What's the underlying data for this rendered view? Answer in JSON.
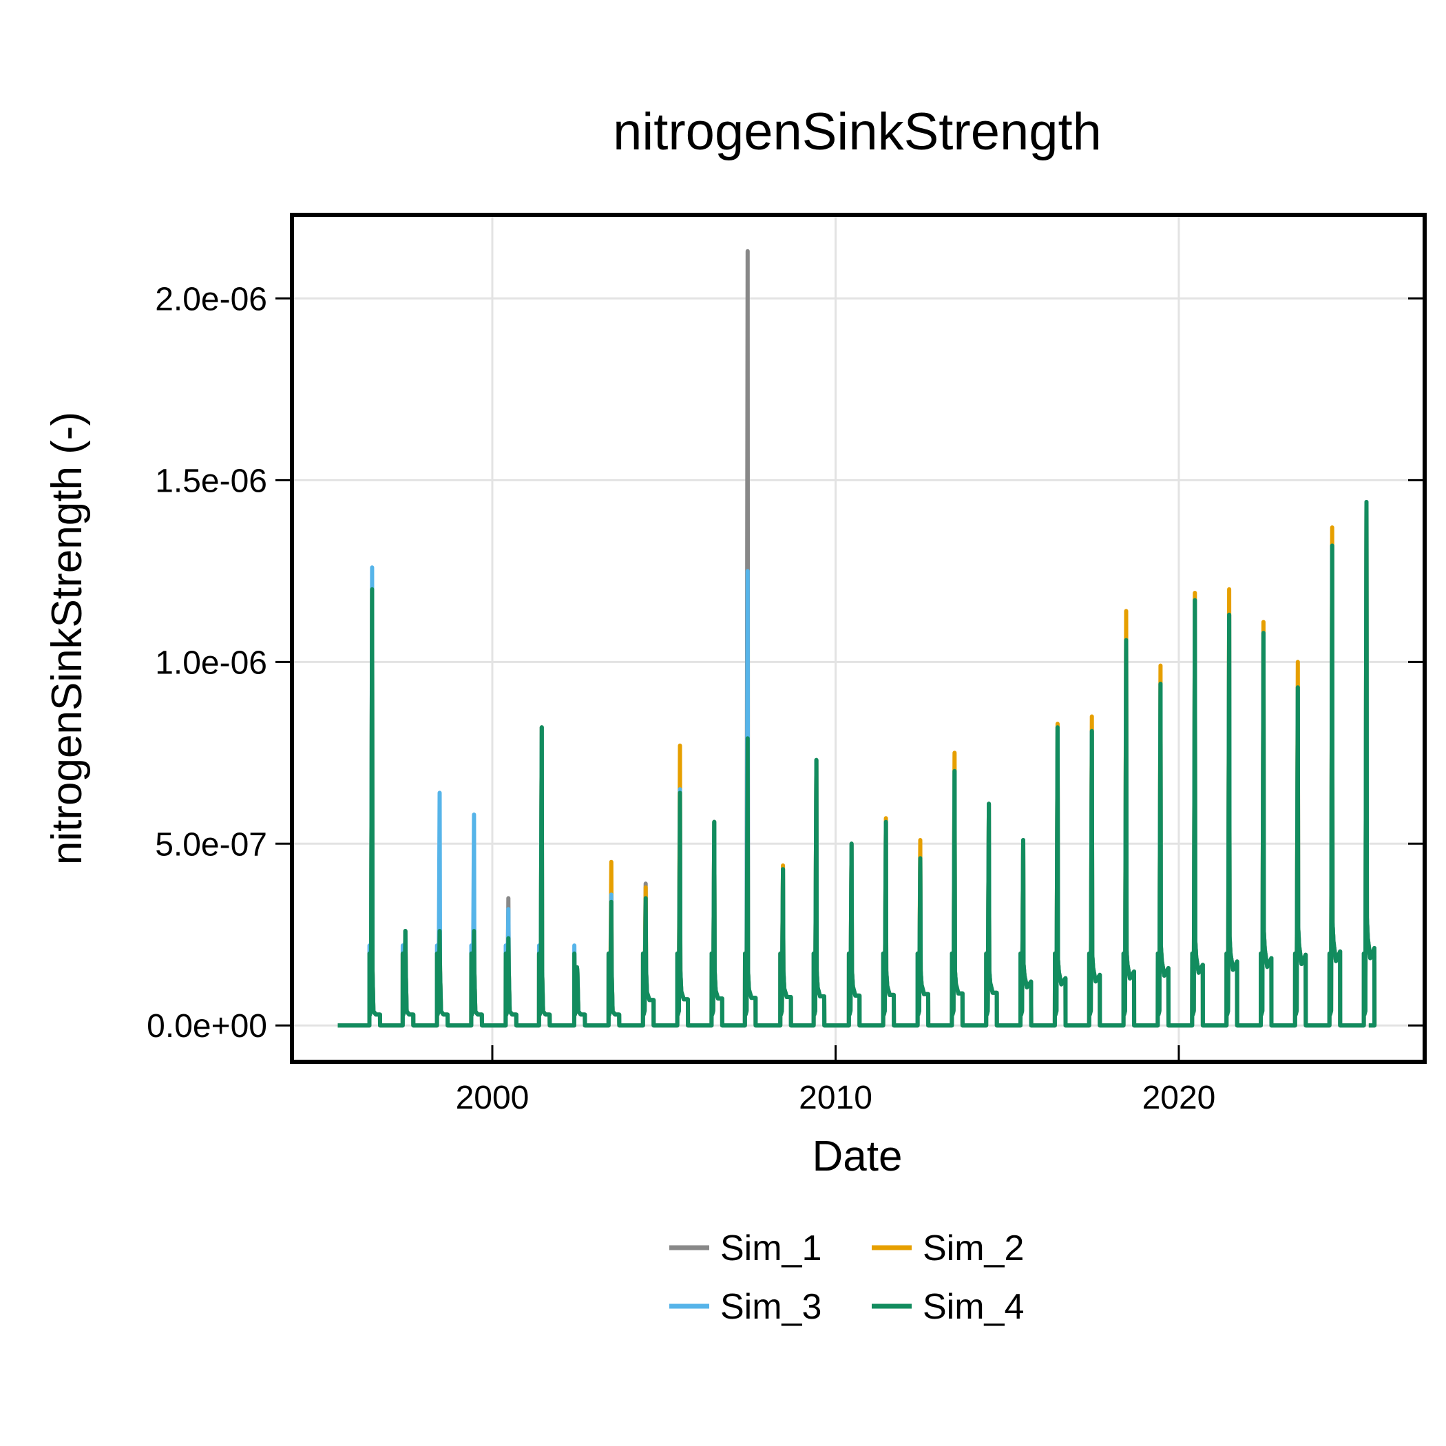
{
  "chart_data": {
    "type": "line",
    "title": "nitrogenSinkStrength",
    "xlabel": "Date",
    "ylabel": "nitrogenSinkStrength (-)",
    "x_axis_type": "date",
    "xlim": [
      "1994-03-01",
      "2027-03-01"
    ],
    "ylim": [
      -1e-07,
      2.23e-06
    ],
    "x_ticks": [
      {
        "value": "2000-01-01",
        "label": "2000"
      },
      {
        "value": "2010-01-01",
        "label": "2010"
      },
      {
        "value": "2020-01-01",
        "label": "2020"
      }
    ],
    "y_ticks": [
      {
        "value": 0,
        "label": "0.0e+00"
      },
      {
        "value": 5e-07,
        "label": "5.0e-07"
      },
      {
        "value": 1e-06,
        "label": "1.0e-06"
      },
      {
        "value": 1.5e-06,
        "label": "1.5e-06"
      },
      {
        "value": 2e-06,
        "label": "2.0e-06"
      }
    ],
    "grid": true,
    "legend_position": "bottom",
    "date_range": [
      "1995-07-01",
      "2025-07-15"
    ],
    "series": [
      {
        "name": "Sim_1",
        "color": "#888888",
        "peaks": [
          {
            "date": "1996-07-01",
            "value": 1.2e-06
          },
          {
            "date": "1997-06-20",
            "value": 2.6e-07
          },
          {
            "date": "1998-06-20",
            "value": 2.6e-07
          },
          {
            "date": "1999-06-20",
            "value": 2.6e-07
          },
          {
            "date": "2000-06-20",
            "value": 3.5e-07
          },
          {
            "date": "2001-06-10",
            "value": 8.2e-07
          },
          {
            "date": "2002-06-20",
            "value": 1.6e-07
          },
          {
            "date": "2003-06-20",
            "value": 3.5e-07
          },
          {
            "date": "2004-06-20",
            "value": 3.9e-07
          },
          {
            "date": "2005-06-20",
            "value": 6.5e-07
          },
          {
            "date": "2006-06-20",
            "value": 5.6e-07
          },
          {
            "date": "2007-06-10",
            "value": 2.13e-06
          },
          {
            "date": "2008-06-20",
            "value": 4.3e-07
          },
          {
            "date": "2009-06-10",
            "value": 7.3e-07
          },
          {
            "date": "2010-06-20",
            "value": 5e-07
          },
          {
            "date": "2011-06-20",
            "value": 5.6e-07
          },
          {
            "date": "2012-06-20",
            "value": 4.6e-07
          },
          {
            "date": "2013-06-20",
            "value": 7e-07
          },
          {
            "date": "2014-06-20",
            "value": 6.1e-07
          },
          {
            "date": "2015-06-20",
            "value": 5.1e-07
          },
          {
            "date": "2016-06-20",
            "value": 8.2e-07
          },
          {
            "date": "2017-06-20",
            "value": 8.1e-07
          },
          {
            "date": "2018-06-20",
            "value": 1.06e-06
          },
          {
            "date": "2019-06-20",
            "value": 9.4e-07
          },
          {
            "date": "2020-06-20",
            "value": 1.17e-06
          },
          {
            "date": "2021-06-20",
            "value": 1.13e-06
          },
          {
            "date": "2022-06-20",
            "value": 1.08e-06
          },
          {
            "date": "2023-06-20",
            "value": 9.3e-07
          },
          {
            "date": "2024-06-20",
            "value": 1.32e-06
          },
          {
            "date": "2025-06-20",
            "value": 1.44e-06
          }
        ]
      },
      {
        "name": "Sim_2",
        "color": "#E69F00",
        "peaks": [
          {
            "date": "1996-07-01",
            "value": 1.2e-06
          },
          {
            "date": "1997-06-20",
            "value": 2.6e-07
          },
          {
            "date": "1998-06-20",
            "value": 2.6e-07
          },
          {
            "date": "1999-06-20",
            "value": 2.6e-07
          },
          {
            "date": "2000-06-20",
            "value": 2.4e-07
          },
          {
            "date": "2001-06-10",
            "value": 8.2e-07
          },
          {
            "date": "2002-06-20",
            "value": 1.6e-07
          },
          {
            "date": "2003-06-20",
            "value": 4.5e-07
          },
          {
            "date": "2004-06-20",
            "value": 3.8e-07
          },
          {
            "date": "2005-06-20",
            "value": 7.7e-07
          },
          {
            "date": "2006-06-20",
            "value": 5.6e-07
          },
          {
            "date": "2007-06-10",
            "value": 7.9e-07
          },
          {
            "date": "2008-06-20",
            "value": 4.4e-07
          },
          {
            "date": "2009-06-10",
            "value": 7.3e-07
          },
          {
            "date": "2010-06-20",
            "value": 5e-07
          },
          {
            "date": "2011-06-20",
            "value": 5.7e-07
          },
          {
            "date": "2012-06-20",
            "value": 5.1e-07
          },
          {
            "date": "2013-06-20",
            "value": 7.5e-07
          },
          {
            "date": "2014-06-20",
            "value": 6.1e-07
          },
          {
            "date": "2015-06-20",
            "value": 5.1e-07
          },
          {
            "date": "2016-06-20",
            "value": 8.3e-07
          },
          {
            "date": "2017-06-20",
            "value": 8.5e-07
          },
          {
            "date": "2018-06-20",
            "value": 1.14e-06
          },
          {
            "date": "2019-06-20",
            "value": 9.9e-07
          },
          {
            "date": "2020-06-20",
            "value": 1.19e-06
          },
          {
            "date": "2021-06-20",
            "value": 1.2e-06
          },
          {
            "date": "2022-06-20",
            "value": 1.11e-06
          },
          {
            "date": "2023-06-20",
            "value": 1e-06
          },
          {
            "date": "2024-06-20",
            "value": 1.37e-06
          },
          {
            "date": "2025-06-20",
            "value": 1.44e-06
          }
        ]
      },
      {
        "name": "Sim_3",
        "color": "#56B4E9",
        "peaks": [
          {
            "date": "1996-07-01",
            "value": 1.26e-06
          },
          {
            "date": "1997-06-20",
            "value": 2.6e-07
          },
          {
            "date": "1998-06-20",
            "value": 6.4e-07
          },
          {
            "date": "1999-06-20",
            "value": 5.8e-07
          },
          {
            "date": "2000-06-20",
            "value": 3.2e-07
          },
          {
            "date": "2001-06-10",
            "value": 8.2e-07
          },
          {
            "date": "2002-06-20",
            "value": 1.6e-07
          },
          {
            "date": "2003-06-20",
            "value": 3.6e-07
          },
          {
            "date": "2004-06-20",
            "value": 3.1e-07
          },
          {
            "date": "2005-06-20",
            "value": 6.5e-07
          },
          {
            "date": "2006-06-20",
            "value": 5.6e-07
          },
          {
            "date": "2007-06-10",
            "value": 1.25e-06
          },
          {
            "date": "2008-06-20",
            "value": 4.3e-07
          },
          {
            "date": "2009-06-10",
            "value": 7.3e-07
          },
          {
            "date": "2010-06-20",
            "value": 5e-07
          },
          {
            "date": "2011-06-20",
            "value": 5.6e-07
          },
          {
            "date": "2012-06-20",
            "value": 4.6e-07
          },
          {
            "date": "2013-06-20",
            "value": 7e-07
          },
          {
            "date": "2014-06-20",
            "value": 6.1e-07
          },
          {
            "date": "2015-06-20",
            "value": 5.1e-07
          },
          {
            "date": "2016-06-20",
            "value": 8.2e-07
          },
          {
            "date": "2017-06-20",
            "value": 8.1e-07
          },
          {
            "date": "2018-06-20",
            "value": 1.06e-06
          },
          {
            "date": "2019-06-20",
            "value": 9.4e-07
          },
          {
            "date": "2020-06-20",
            "value": 1.17e-06
          },
          {
            "date": "2021-06-20",
            "value": 1.13e-06
          },
          {
            "date": "2022-06-20",
            "value": 1.08e-06
          },
          {
            "date": "2023-06-20",
            "value": 9.3e-07
          },
          {
            "date": "2024-06-20",
            "value": 1.32e-06
          },
          {
            "date": "2025-06-20",
            "value": 1.44e-06
          }
        ]
      },
      {
        "name": "Sim_4",
        "color": "#128C5E",
        "peaks": [
          {
            "date": "1996-07-01",
            "value": 1.2e-06
          },
          {
            "date": "1997-06-20",
            "value": 2.6e-07
          },
          {
            "date": "1998-06-20",
            "value": 2.6e-07
          },
          {
            "date": "1999-06-20",
            "value": 2.6e-07
          },
          {
            "date": "2000-06-20",
            "value": 2.4e-07
          },
          {
            "date": "2001-06-10",
            "value": 8.2e-07
          },
          {
            "date": "2002-06-20",
            "value": 1.6e-07
          },
          {
            "date": "2003-06-20",
            "value": 3.4e-07
          },
          {
            "date": "2004-06-20",
            "value": 3.5e-07
          },
          {
            "date": "2005-06-20",
            "value": 6.4e-07
          },
          {
            "date": "2006-06-20",
            "value": 5.6e-07
          },
          {
            "date": "2007-06-10",
            "value": 7.9e-07
          },
          {
            "date": "2008-06-20",
            "value": 4.3e-07
          },
          {
            "date": "2009-06-10",
            "value": 7.3e-07
          },
          {
            "date": "2010-06-20",
            "value": 5e-07
          },
          {
            "date": "2011-06-20",
            "value": 5.6e-07
          },
          {
            "date": "2012-06-20",
            "value": 4.6e-07
          },
          {
            "date": "2013-06-20",
            "value": 7e-07
          },
          {
            "date": "2014-06-20",
            "value": 6.1e-07
          },
          {
            "date": "2015-06-20",
            "value": 5.1e-07
          },
          {
            "date": "2016-06-20",
            "value": 8.2e-07
          },
          {
            "date": "2017-06-20",
            "value": 8.1e-07
          },
          {
            "date": "2018-06-20",
            "value": 1.06e-06
          },
          {
            "date": "2019-06-20",
            "value": 9.4e-07
          },
          {
            "date": "2020-06-20",
            "value": 1.17e-06
          },
          {
            "date": "2021-06-20",
            "value": 1.13e-06
          },
          {
            "date": "2022-06-20",
            "value": 1.08e-06
          },
          {
            "date": "2023-06-20",
            "value": 9.3e-07
          },
          {
            "date": "2024-06-20",
            "value": 1.32e-06
          },
          {
            "date": "2025-06-20",
            "value": 1.44e-06
          }
        ]
      }
    ]
  }
}
